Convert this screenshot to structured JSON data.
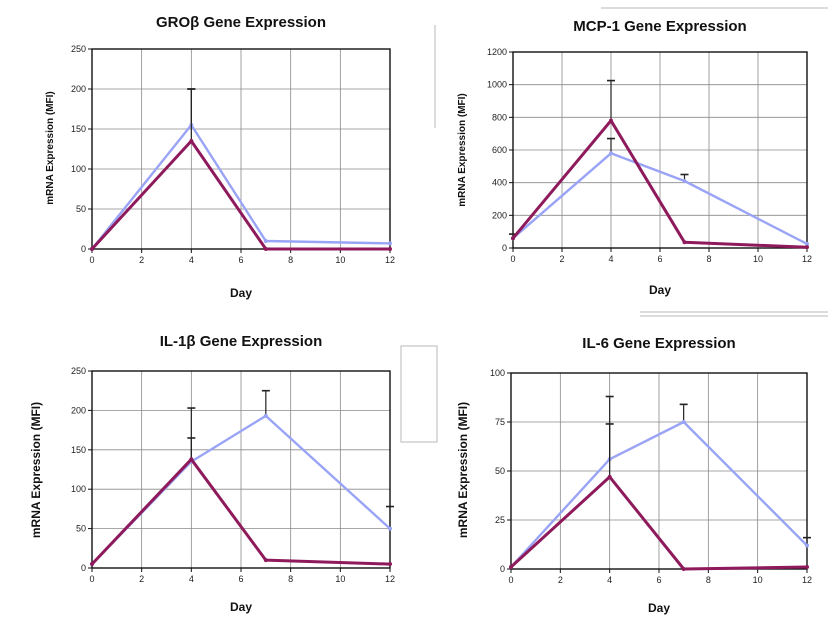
{
  "colors": {
    "series_a": "#8e1a5c",
    "series_b": "#9aa4f6",
    "grid": "#8a8a8a"
  },
  "chart_data": [
    {
      "type": "line",
      "title": "GROβ Gene Expression",
      "xlabel": "Day",
      "ylabel": "mRNA Expression (MFI)",
      "xlim": [
        0,
        12
      ],
      "xticks": [
        0,
        2,
        4,
        6,
        8,
        10,
        12
      ],
      "ylim": [
        0,
        250
      ],
      "yticks": [
        0,
        50,
        100,
        150,
        200,
        250
      ],
      "grid": true,
      "series": [
        {
          "color": "#9aa4f6",
          "x": [
            0,
            4,
            7,
            12
          ],
          "y": [
            0,
            155,
            10,
            7
          ],
          "err": [
            0,
            45,
            0,
            0
          ]
        },
        {
          "color": "#8e1a5c",
          "x": [
            0,
            4,
            7,
            12
          ],
          "y": [
            0,
            135,
            0,
            0
          ],
          "err": [
            0,
            65,
            0,
            0
          ]
        }
      ]
    },
    {
      "type": "line",
      "title": "MCP-1 Gene Expression",
      "xlabel": "Day",
      "ylabel": "mRNA Expression (MFI)",
      "xlim": [
        0,
        12
      ],
      "xticks": [
        0,
        2,
        4,
        6,
        8,
        10,
        12
      ],
      "ylim": [
        0,
        1200
      ],
      "yticks": [
        0,
        200,
        400,
        600,
        800,
        1000,
        1200
      ],
      "grid": true,
      "series": [
        {
          "color": "#9aa4f6",
          "x": [
            0,
            4,
            7,
            12
          ],
          "y": [
            60,
            580,
            410,
            25
          ],
          "err": [
            0,
            90,
            40,
            0
          ]
        },
        {
          "color": "#8e1a5c",
          "x": [
            0,
            4,
            7,
            12
          ],
          "y": [
            60,
            780,
            35,
            5
          ],
          "err": [
            25,
            245,
            0,
            0
          ]
        }
      ]
    },
    {
      "type": "line",
      "title": "IL-1β Gene Expression",
      "xlabel": "Day",
      "ylabel": "mRNA Expression (MFI)",
      "xlim": [
        0,
        12
      ],
      "xticks": [
        0,
        2,
        4,
        6,
        8,
        10,
        12
      ],
      "ylim": [
        0,
        250
      ],
      "yticks": [
        0,
        50,
        100,
        150,
        200,
        250
      ],
      "grid": true,
      "series": [
        {
          "color": "#9aa4f6",
          "x": [
            0,
            4,
            7,
            12
          ],
          "y": [
            5,
            135,
            193,
            50
          ],
          "err": [
            0,
            30,
            32,
            28
          ]
        },
        {
          "color": "#8e1a5c",
          "x": [
            0,
            4,
            7,
            12
          ],
          "y": [
            5,
            138,
            10,
            5
          ],
          "err": [
            0,
            65,
            0,
            0
          ]
        }
      ]
    },
    {
      "type": "line",
      "title": "IL-6 Gene Expression",
      "xlabel": "Day",
      "ylabel": "mRNA Expression (MFI)",
      "xlim": [
        0,
        12
      ],
      "xticks": [
        0,
        2,
        4,
        6,
        8,
        10,
        12
      ],
      "ylim": [
        0,
        100
      ],
      "yticks": [
        0,
        25,
        50,
        75,
        100
      ],
      "grid": true,
      "series": [
        {
          "color": "#9aa4f6",
          "x": [
            0,
            4,
            7,
            12
          ],
          "y": [
            1,
            56,
            75,
            12
          ],
          "err": [
            0,
            18,
            9,
            4
          ]
        },
        {
          "color": "#8e1a5c",
          "x": [
            0,
            4,
            7,
            12
          ],
          "y": [
            1,
            47,
            0,
            1
          ],
          "err": [
            0,
            41,
            0,
            0
          ]
        }
      ]
    }
  ]
}
